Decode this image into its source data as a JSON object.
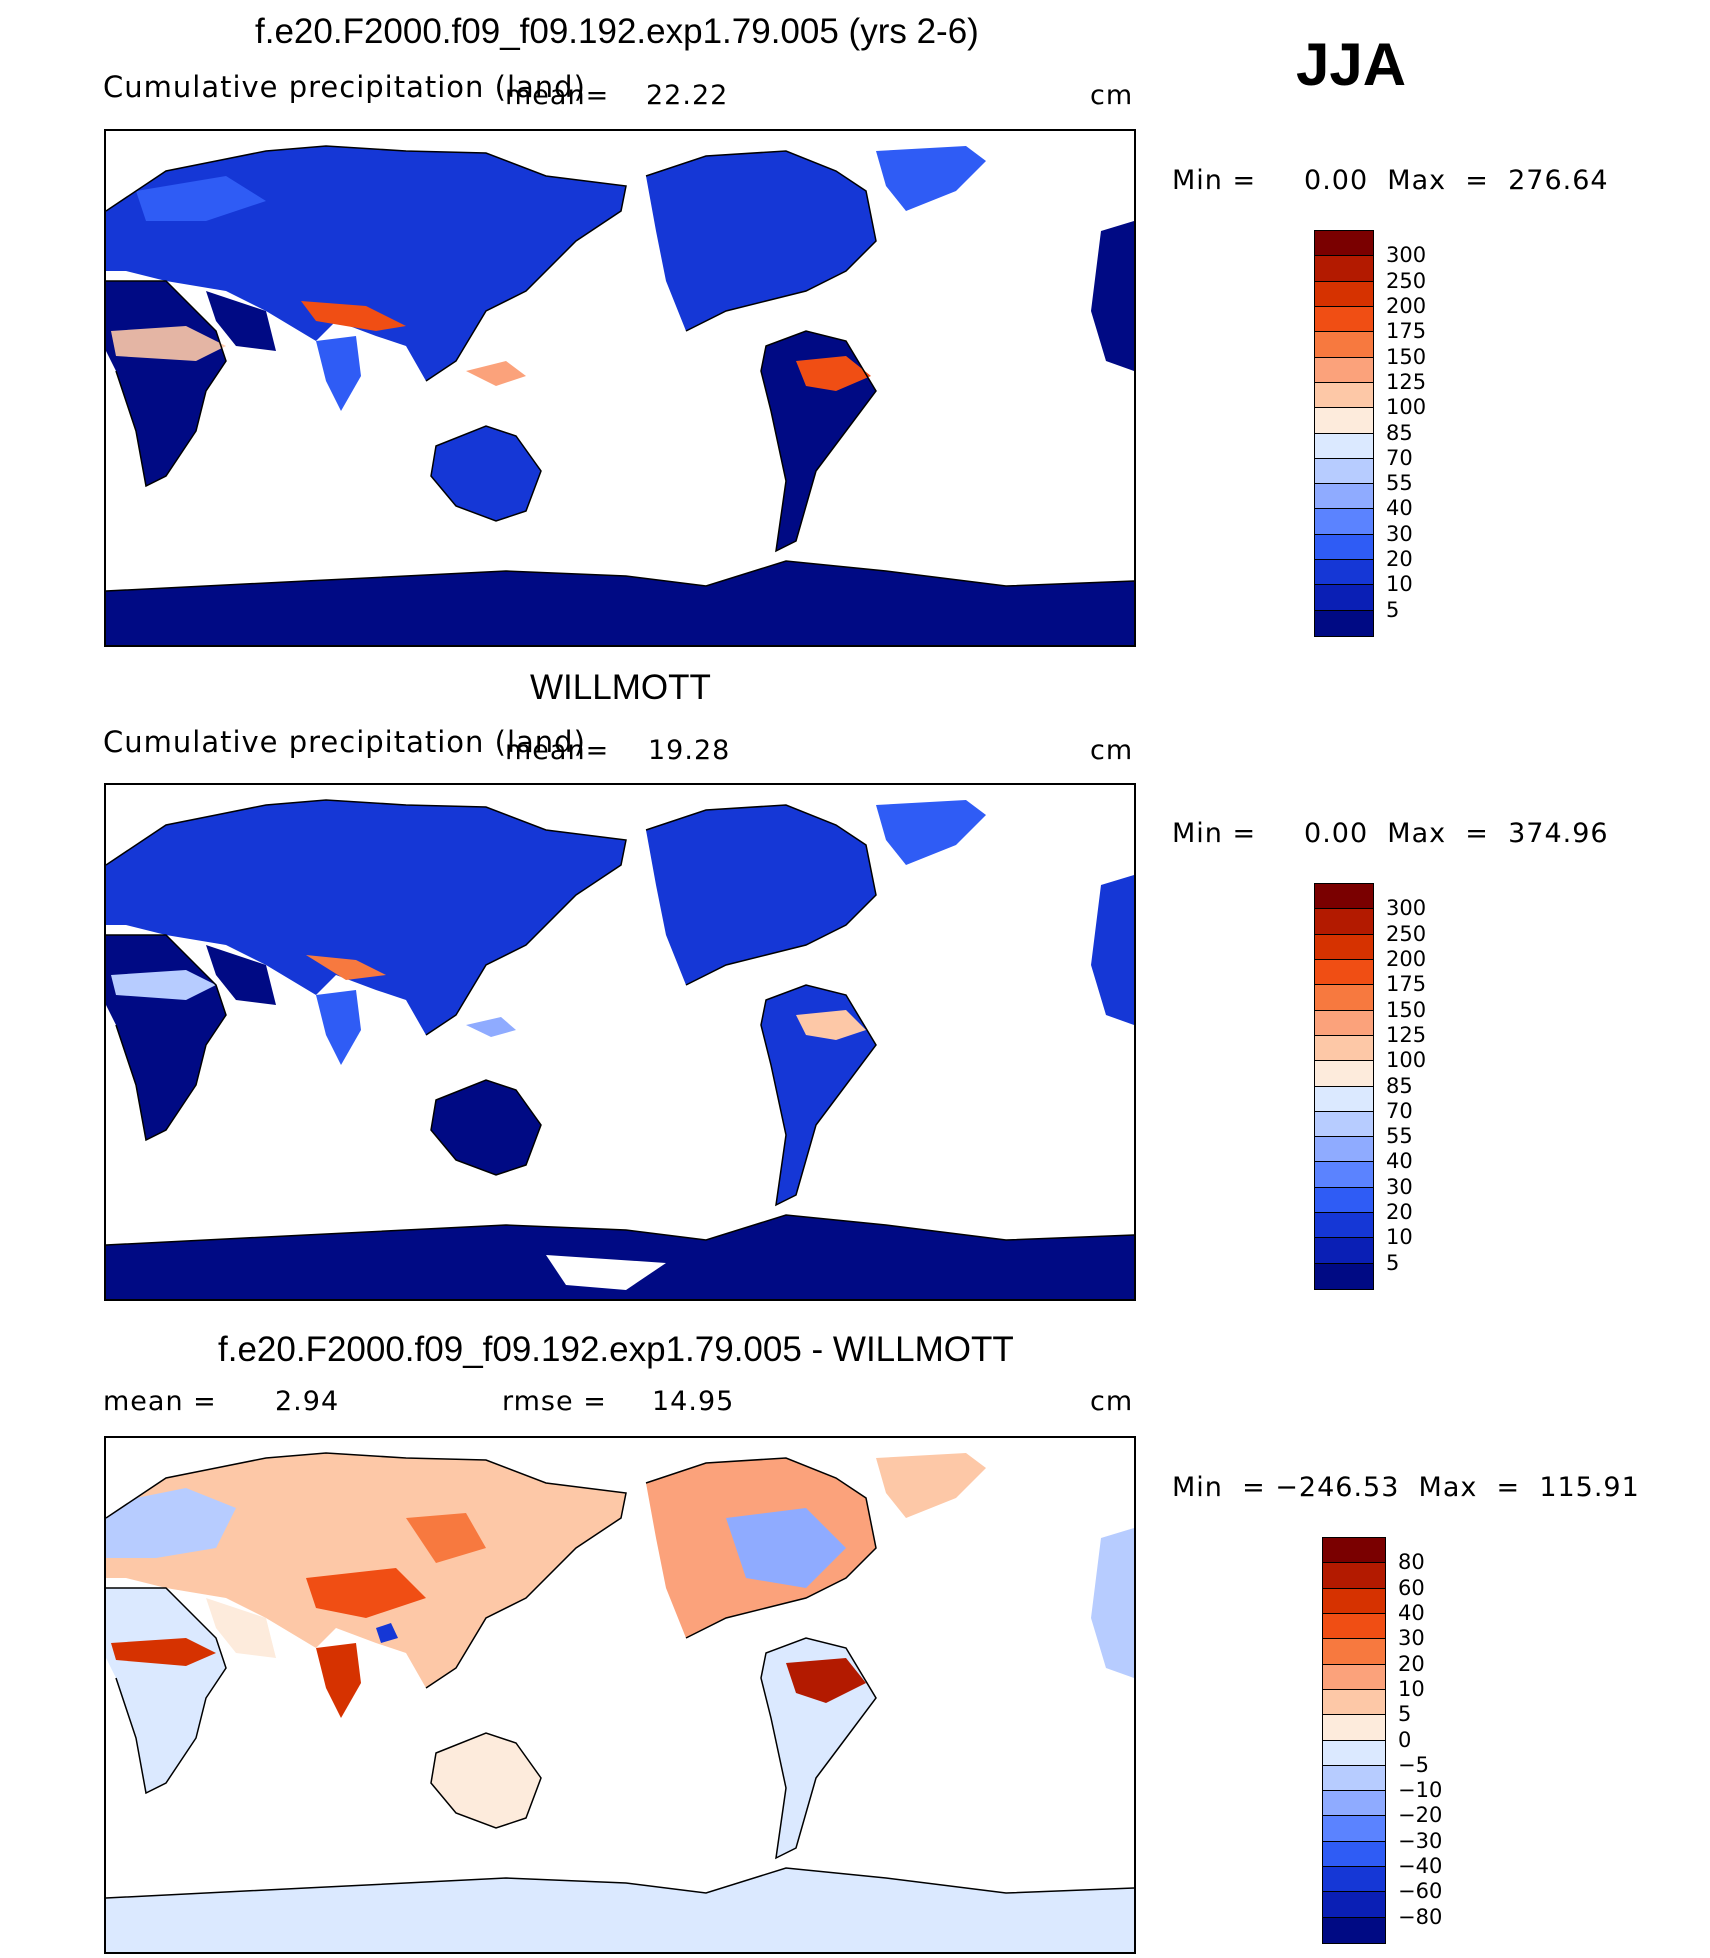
{
  "season": "JJA",
  "panels": [
    {
      "title": "f.e20.F2000.f09_f09.192.exp1.79.005 (yrs 2-6)",
      "subtitle": "Cumulative precipitation (land)",
      "mean_label": "mean=",
      "mean_value": "22.22",
      "units": "cm",
      "range_text": "Min =     0.00  Max  =  276.64",
      "colorbar": {
        "labels": [
          "300",
          "250",
          "200",
          "175",
          "150",
          "125",
          "100",
          "85",
          "70",
          "55",
          "40",
          "30",
          "20",
          "10",
          "5"
        ],
        "colors": [
          "#7a0000",
          "#b31a00",
          "#d63200",
          "#f04e14",
          "#f7793f",
          "#fba27b",
          "#fdc8a7",
          "#fdebdc",
          "#dbe9ff",
          "#b7ccff",
          "#8fabff",
          "#5b83ff",
          "#2f5cf5",
          "#1537d6",
          "#0a1fb5",
          "#000a84"
        ]
      }
    },
    {
      "title": "WILLMOTT",
      "subtitle": "Cumulative precipitation (land)",
      "mean_label": "mean=",
      "mean_value": "19.28",
      "units": "cm",
      "range_text": "Min =     0.00  Max  =  374.96",
      "colorbar": {
        "labels": [
          "300",
          "250",
          "200",
          "175",
          "150",
          "125",
          "100",
          "85",
          "70",
          "55",
          "40",
          "30",
          "20",
          "10",
          "5"
        ],
        "colors": [
          "#7a0000",
          "#b31a00",
          "#d63200",
          "#f04e14",
          "#f7793f",
          "#fba27b",
          "#fdc8a7",
          "#fdebdc",
          "#dbe9ff",
          "#b7ccff",
          "#8fabff",
          "#5b83ff",
          "#2f5cf5",
          "#1537d6",
          "#0a1fb5",
          "#000a84"
        ]
      }
    },
    {
      "title": "f.e20.F2000.f09_f09.192.exp1.79.005 - WILLMOTT",
      "mean_label": "mean =",
      "mean_value": "2.94",
      "rmse_label": "rmse =",
      "rmse_value": "14.95",
      "units": "cm",
      "range_text": "Min  = −246.53  Max  =  115.91",
      "colorbar": {
        "labels": [
          "80",
          "60",
          "40",
          "30",
          "20",
          "10",
          "5",
          "0",
          "−5",
          "−10",
          "−20",
          "−30",
          "−40",
          "−60",
          "−80"
        ],
        "colors": [
          "#7a0000",
          "#b31a00",
          "#d63200",
          "#f04e14",
          "#f7793f",
          "#fba27b",
          "#fdc8a7",
          "#fdebdc",
          "#dbe9ff",
          "#b7ccff",
          "#8fabff",
          "#5b83ff",
          "#2f5cf5",
          "#1537d6",
          "#0a1fb5",
          "#000a84"
        ]
      }
    }
  ],
  "colors": {
    "land_dry": "#000a84",
    "land_mid": "#1537d6",
    "land_wet": "#f04e14",
    "diff_pos": "#f7793f",
    "diff_neg": "#5b83ff",
    "diff_neutral": "#fdebdc"
  }
}
